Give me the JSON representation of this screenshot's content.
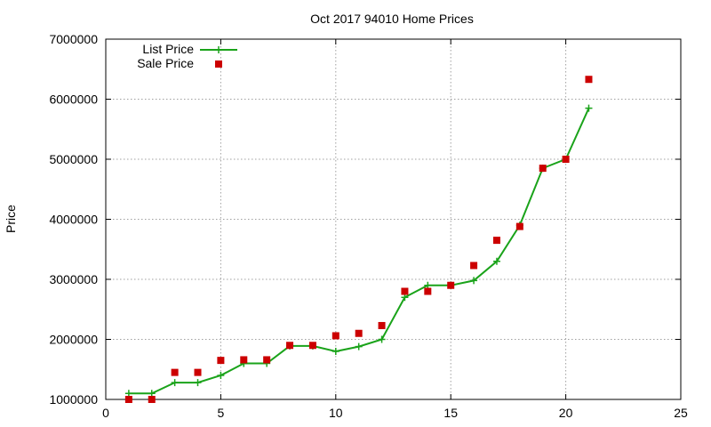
{
  "chart_data": {
    "type": "line",
    "title": "Oct 2017 94010 Home Prices",
    "xlabel": "",
    "ylabel": "Price",
    "xlim": [
      0,
      25
    ],
    "ylim": [
      1000000,
      7000000
    ],
    "xticks": [
      0,
      5,
      10,
      15,
      20,
      25
    ],
    "yticks": [
      1000000,
      2000000,
      3000000,
      4000000,
      5000000,
      6000000,
      7000000
    ],
    "grid": true,
    "legend_position": "top-left",
    "series": [
      {
        "name": "List Price",
        "style": "line+cross",
        "color": "#1aa31a",
        "points": [
          [
            1,
            1100000
          ],
          [
            2,
            1100000
          ],
          [
            3,
            1280000
          ],
          [
            4,
            1280000
          ],
          [
            5,
            1400000
          ],
          [
            6,
            1600000
          ],
          [
            7,
            1600000
          ],
          [
            8,
            1890000
          ],
          [
            9,
            1890000
          ],
          [
            10,
            1800000
          ],
          [
            11,
            1880000
          ],
          [
            12,
            2000000
          ],
          [
            13,
            2700000
          ],
          [
            14,
            2900000
          ],
          [
            15,
            2900000
          ],
          [
            16,
            2980000
          ],
          [
            17,
            3300000
          ],
          [
            18,
            3900000
          ],
          [
            19,
            4850000
          ],
          [
            20,
            5000000
          ],
          [
            21,
            5850000
          ]
        ]
      },
      {
        "name": "Sale Price",
        "style": "square",
        "color": "#cc0000",
        "points": [
          [
            1,
            1000000
          ],
          [
            2,
            1000000
          ],
          [
            3,
            1450000
          ],
          [
            4,
            1450000
          ],
          [
            5,
            1650000
          ],
          [
            6,
            1660000
          ],
          [
            7,
            1660000
          ],
          [
            8,
            1900000
          ],
          [
            9,
            1900000
          ],
          [
            10,
            2060000
          ],
          [
            11,
            2100000
          ],
          [
            12,
            2230000
          ],
          [
            13,
            2800000
          ],
          [
            14,
            2800000
          ],
          [
            15,
            2900000
          ],
          [
            16,
            3230000
          ],
          [
            17,
            3650000
          ],
          [
            18,
            3880000
          ],
          [
            19,
            4850000
          ],
          [
            20,
            5000000
          ],
          [
            21,
            6330000
          ]
        ]
      }
    ]
  }
}
